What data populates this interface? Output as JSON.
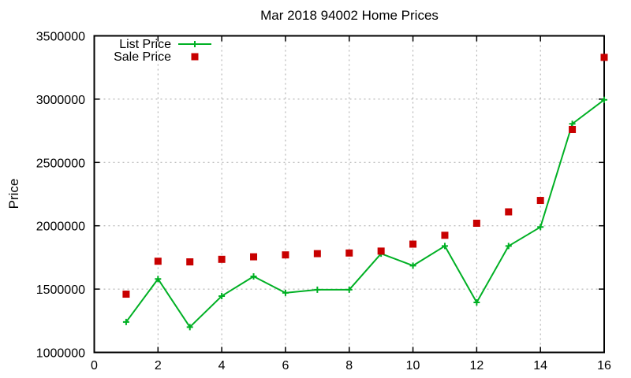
{
  "colors": {
    "background": "#ffffff",
    "axis": "#000000",
    "grid": "#a6a6a6",
    "list_price_green": "#00b024",
    "sale_price_red": "#c80000"
  },
  "chart_data": {
    "type": "line",
    "title": "Mar 2018 94002 Home Prices",
    "xlabel": "",
    "ylabel": "Price",
    "xlim": [
      0,
      16
    ],
    "ylim": [
      1000000,
      3500000
    ],
    "xticks": [
      0,
      2,
      4,
      6,
      8,
      10,
      12,
      14,
      16
    ],
    "yticks": [
      1000000,
      1500000,
      2000000,
      2500000,
      3000000,
      3500000
    ],
    "grid": true,
    "grid_style": "dashed-gray",
    "legend_position": "top-left-inside",
    "x": [
      1,
      2,
      3,
      4,
      5,
      6,
      7,
      8,
      9,
      10,
      11,
      12,
      13,
      14,
      15,
      16
    ],
    "series": [
      {
        "name": "List Price",
        "color": "#00b024",
        "line": true,
        "marker": "plus",
        "values": [
          1240000,
          1580000,
          1200000,
          1445000,
          1600000,
          1470000,
          1495000,
          1495000,
          1780000,
          1685000,
          1840000,
          1395000,
          1840000,
          1990000,
          2805000,
          2995000
        ]
      },
      {
        "name": "Sale Price",
        "color": "#c80000",
        "line": false,
        "marker": "square",
        "values": [
          1460000,
          1720000,
          1715000,
          1735000,
          1755000,
          1770000,
          1780000,
          1785000,
          1800000,
          1855000,
          1925000,
          2020000,
          2110000,
          2200000,
          2760000,
          3330000
        ]
      }
    ]
  }
}
